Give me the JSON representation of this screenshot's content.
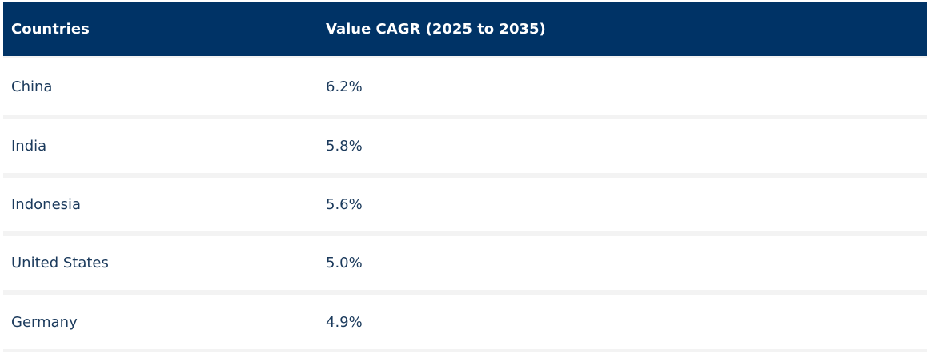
{
  "table": {
    "headers": {
      "country": "Countries",
      "cagr": "Value CAGR (2025 to 2035)"
    },
    "rows": [
      {
        "country": "China",
        "cagr": "6.2%"
      },
      {
        "country": "India",
        "cagr": "5.8%"
      },
      {
        "country": "Indonesia",
        "cagr": "5.6%"
      },
      {
        "country": "United States",
        "cagr": "5.0%"
      },
      {
        "country": "Germany",
        "cagr": "4.9%"
      }
    ]
  },
  "colors": {
    "header_background": "#003366",
    "header_text": "#ffffff",
    "row_background": "#ffffff",
    "row_separator": "#f3f3f3",
    "body_text": "#1b3a5c"
  }
}
